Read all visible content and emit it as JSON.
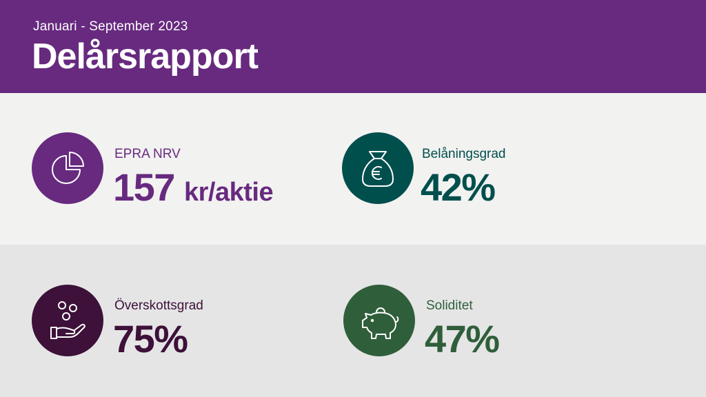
{
  "header": {
    "period": "Januari - September 2023",
    "title": "Delårsrapport"
  },
  "colors": {
    "purple": "#672a7f",
    "teal": "#004f4d",
    "dark_purple": "#3d1139",
    "green": "#2f5f3a",
    "band_light": "#f2f2f1",
    "band_grey": "#e5e5e6"
  },
  "kpis": [
    {
      "label": "EPRA NRV",
      "value": "157",
      "unit": "kr/aktie",
      "icon": "pie-chart-icon",
      "color": "#672a7f"
    },
    {
      "label": "Belåningsgrad",
      "value": "42%",
      "unit": "",
      "icon": "money-bag-euro-icon",
      "color": "#004f4d"
    },
    {
      "label": "Överskottsgrad",
      "value": "75%",
      "unit": "",
      "icon": "coins-hand-icon",
      "color": "#3d1139"
    },
    {
      "label": "Soliditet",
      "value": "47%",
      "unit": "",
      "icon": "piggy-bank-icon",
      "color": "#2f5f3a"
    }
  ]
}
